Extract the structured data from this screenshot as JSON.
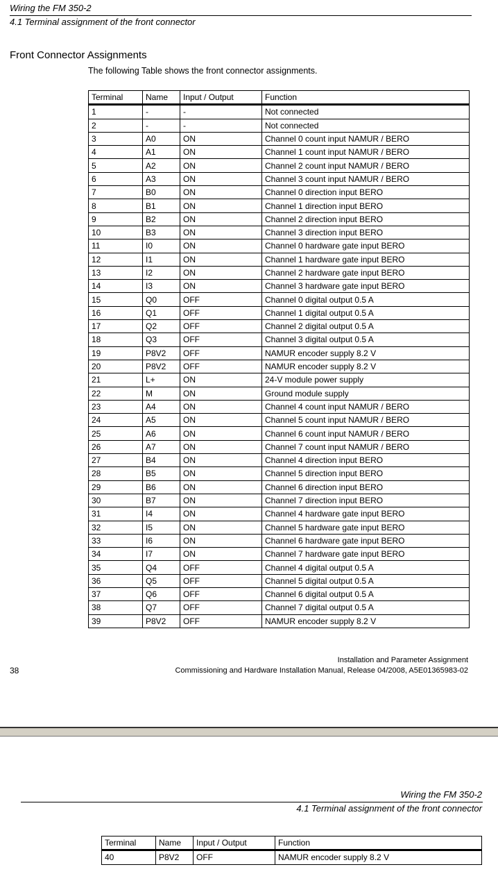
{
  "page1": {
    "header_title": "Wiring the FM 350-2",
    "header_subtitle": "4.1 Terminal assignment of the front connector",
    "section_heading": "Front Connector Assignments",
    "intro": "The following Table shows the front connector assignments.",
    "footer_line1": "Installation and Parameter Assignment",
    "footer_line2": "Commissioning and Hardware Installation Manual, Release 04/2008, A5E01365983-02",
    "page_number": "38"
  },
  "table_columns": [
    "Terminal",
    "Name",
    "Input / Output",
    "Function"
  ],
  "table_rows": [
    [
      "1",
      "-",
      "-",
      "Not connected"
    ],
    [
      "2",
      "-",
      "-",
      "Not connected"
    ],
    [
      "3",
      "A0",
      "ON",
      "Channel 0 count input NAMUR / BERO"
    ],
    [
      "4",
      "A1",
      "ON",
      "Channel 1 count input NAMUR / BERO"
    ],
    [
      "5",
      "A2",
      "ON",
      "Channel 2 count input NAMUR / BERO"
    ],
    [
      "6",
      "A3",
      "ON",
      "Channel 3 count input NAMUR / BERO"
    ],
    [
      "7",
      "B0",
      "ON",
      "Channel 0 direction input BERO"
    ],
    [
      "8",
      "B1",
      "ON",
      "Channel 1 direction input BERO"
    ],
    [
      "9",
      "B2",
      "ON",
      "Channel 2 direction input BERO"
    ],
    [
      "10",
      "B3",
      "ON",
      "Channel 3 direction input BERO"
    ],
    [
      "11",
      "I0",
      "ON",
      "Channel 0 hardware gate input BERO"
    ],
    [
      "12",
      "I1",
      "ON",
      "Channel 1 hardware gate input BERO"
    ],
    [
      "13",
      "I2",
      "ON",
      "Channel 2 hardware gate input BERO"
    ],
    [
      "14",
      "I3",
      "ON",
      "Channel 3 hardware gate input BERO"
    ],
    [
      "15",
      "Q0",
      "OFF",
      "Channel 0 digital output 0.5 A"
    ],
    [
      "16",
      "Q1",
      "OFF",
      "Channel 1 digital output 0.5 A"
    ],
    [
      "17",
      "Q2",
      "OFF",
      "Channel 2 digital output 0.5 A"
    ],
    [
      "18",
      "Q3",
      "OFF",
      "Channel 3 digital output 0.5 A"
    ],
    [
      "19",
      "P8V2",
      "OFF",
      "NAMUR encoder supply 8.2 V"
    ],
    [
      "20",
      "P8V2",
      "OFF",
      "NAMUR encoder supply 8.2 V"
    ],
    [
      "21",
      "L+",
      "ON",
      "24-V module power supply"
    ],
    [
      "22",
      "M",
      "ON",
      "Ground module supply"
    ],
    [
      "23",
      "A4",
      "ON",
      "Channel 4 count input NAMUR / BERO"
    ],
    [
      "24",
      "A5",
      "ON",
      "Channel 5 count input NAMUR / BERO"
    ],
    [
      "25",
      "A6",
      "ON",
      "Channel 6 count input NAMUR / BERO"
    ],
    [
      "26",
      "A7",
      "ON",
      "Channel 7 count input NAMUR / BERO"
    ],
    [
      "27",
      "B4",
      "ON",
      "Channel 4 direction input BERO"
    ],
    [
      "28",
      "B5",
      "ON",
      "Channel 5 direction input BERO"
    ],
    [
      "29",
      "B6",
      "ON",
      "Channel 6 direction input BERO"
    ],
    [
      "30",
      "B7",
      "ON",
      "Channel 7 direction input BERO"
    ],
    [
      "31",
      "I4",
      "ON",
      "Channel 4 hardware gate input BERO"
    ],
    [
      "32",
      "I5",
      "ON",
      "Channel 5 hardware gate input BERO"
    ],
    [
      "33",
      "I6",
      "ON",
      "Channel 6 hardware gate input BERO"
    ],
    [
      "34",
      "I7",
      "ON",
      "Channel 7 hardware gate input BERO"
    ],
    [
      "35",
      "Q4",
      "OFF",
      "Channel 4 digital output 0.5 A"
    ],
    [
      "36",
      "Q5",
      "OFF",
      "Channel 5 digital output 0.5 A"
    ],
    [
      "37",
      "Q6",
      "OFF",
      "Channel 6 digital output 0.5 A"
    ],
    [
      "38",
      "Q7",
      "OFF",
      "Channel 7 digital output 0.5 A"
    ],
    [
      "39",
      "P8V2",
      "OFF",
      "NAMUR encoder supply 8.2 V"
    ]
  ],
  "page2": {
    "header_title": "Wiring the FM 350-2",
    "header_subtitle": "4.1 Terminal assignment of the front connector",
    "table_rows": [
      [
        "40",
        "P8V2",
        "OFF",
        "NAMUR encoder supply 8.2 V"
      ]
    ]
  }
}
